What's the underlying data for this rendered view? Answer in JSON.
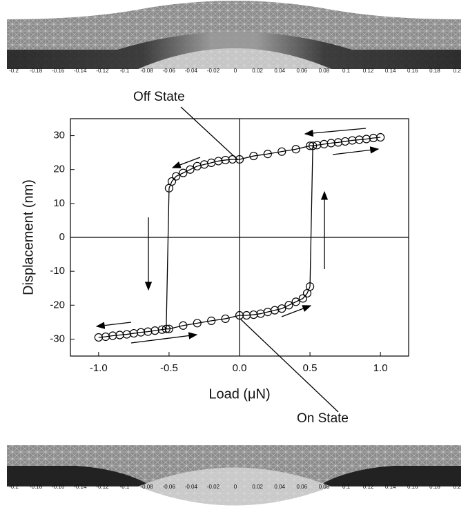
{
  "top_mesh": {
    "labels": [
      "-0.2",
      "-0.18",
      "-0.16",
      "-0.14",
      "-0.12",
      "-0.1",
      "-0.08",
      "-0.06",
      "-0.04",
      "-0.02",
      "0",
      "0.02",
      "0.04",
      "0.06",
      "0.08",
      "0.1",
      "0.12",
      "0.14",
      "0.16",
      "0.18",
      "0.2"
    ]
  },
  "bottom_mesh": {
    "labels": [
      "-0.2",
      "-0.18",
      "-0.16",
      "-0.14",
      "-0.12",
      "-0.1",
      "-0.08",
      "-0.06",
      "-0.04",
      "-0.02",
      "0",
      "0.02",
      "0.04",
      "0.06",
      "0.08",
      "0.1",
      "0.12",
      "0.14",
      "0.16",
      "0.18",
      "0.2"
    ]
  },
  "chart_data": {
    "type": "line",
    "x_label": "Load  (μN)",
    "y_label": "Displacement (nm)",
    "annotations": [
      "Off State",
      "On State"
    ],
    "xlim": [
      -1.2,
      1.2
    ],
    "ylim": [
      -35,
      35
    ],
    "xticks": [
      {
        "value": -1,
        "label": "-1.0"
      },
      -0.5,
      {
        "value": 0,
        "label": "0.0"
      },
      0.5,
      {
        "value": 1,
        "label": "1.0"
      }
    ],
    "yticks": [
      -30,
      -20,
      -10,
      0,
      10,
      20,
      30
    ],
    "zero_lines": true,
    "marker": "circle",
    "series": [
      {
        "color": "#000000",
        "x": [
          -0.5,
          -0.48,
          -0.45,
          -0.4,
          -0.35,
          -0.3,
          -0.25,
          -0.2,
          -0.15,
          -0.1,
          -0.05,
          0,
          0.1,
          0.2,
          0.3,
          0.4,
          0.5,
          0.52,
          0.55,
          0.6,
          0.65,
          0.7,
          0.75,
          0.8,
          0.85,
          0.9,
          0.95,
          1.0
        ],
        "values": [
          14.5,
          16.5,
          18,
          19,
          20,
          21,
          21.5,
          22,
          22.5,
          22.8,
          23,
          23,
          24,
          24.6,
          25.3,
          26,
          27,
          27,
          27.2,
          27.5,
          27.8,
          28,
          28.3,
          28.6,
          28.8,
          29,
          29.3,
          29.5
        ]
      },
      {
        "color": "#000000",
        "x": [
          -1.0,
          -0.95,
          -0.9,
          -0.85,
          -0.8,
          -0.75,
          -0.7,
          -0.65,
          -0.6,
          -0.55,
          -0.52,
          -0.5,
          -0.4,
          -0.3,
          -0.2,
          -0.1,
          0,
          0.05,
          0.1,
          0.15,
          0.2,
          0.25,
          0.3,
          0.35,
          0.4,
          0.45,
          0.48,
          0.5
        ],
        "values": [
          -29.5,
          -29.3,
          -29,
          -28.8,
          -28.6,
          -28.3,
          -28,
          -27.8,
          -27.5,
          -27.2,
          -27,
          -27,
          -26,
          -25.3,
          -24.6,
          -24,
          -23,
          -23,
          -22.8,
          -22.5,
          -22,
          -21.5,
          -21,
          -20,
          -19,
          -18,
          -16.5,
          -14.5
        ]
      }
    ]
  }
}
